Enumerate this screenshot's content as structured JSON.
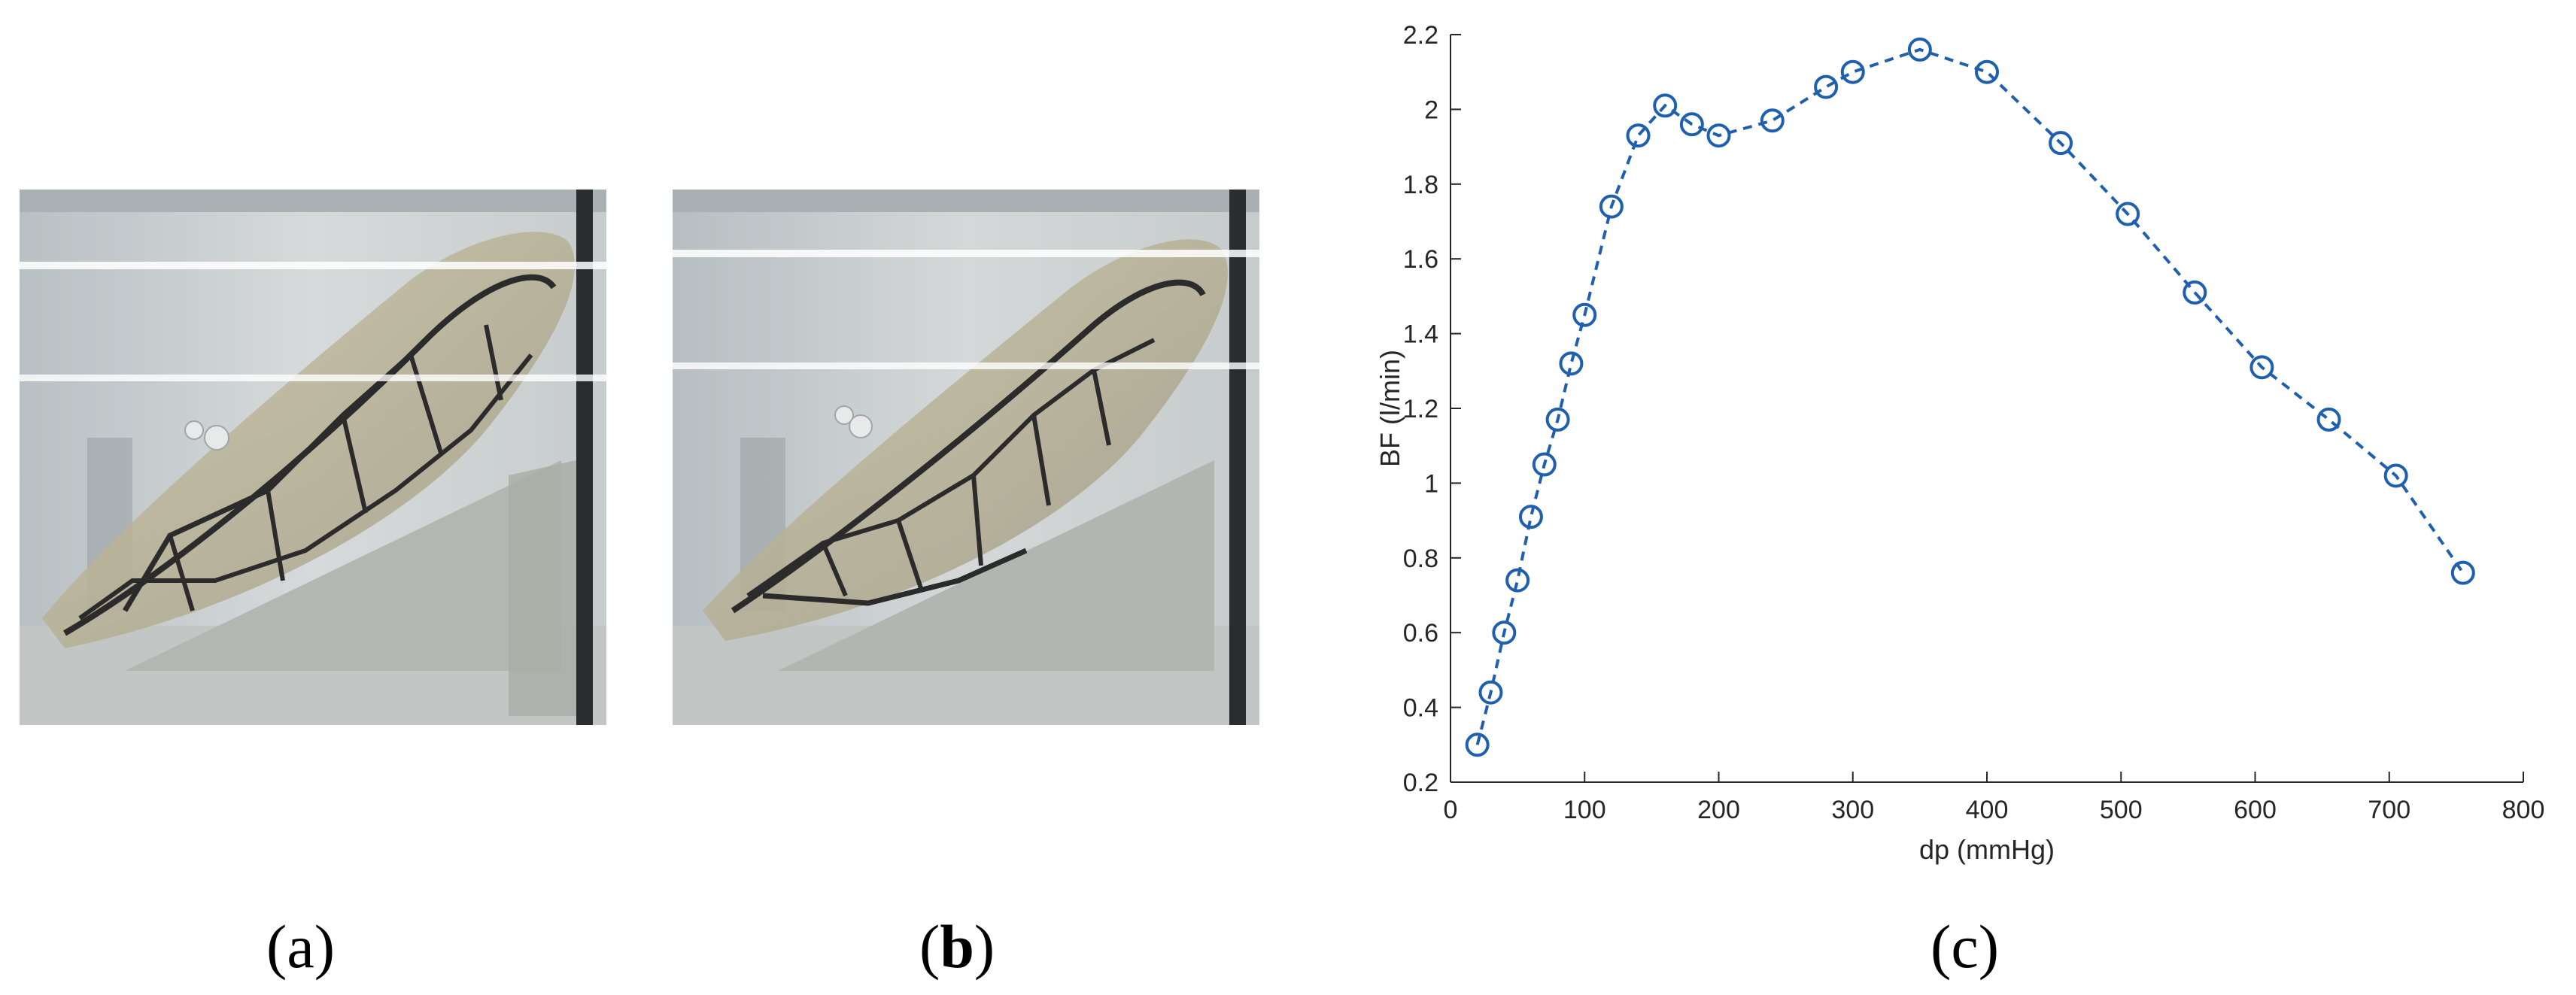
{
  "panels": [
    {
      "label_open": "(",
      "label_letter": "a",
      "label_close": ")"
    },
    {
      "label_open": "(",
      "label_letter": "b",
      "label_close": ")"
    },
    {
      "label_open": "(",
      "label_letter": "c",
      "label_close": ")"
    }
  ],
  "chart_data": {
    "type": "line",
    "xlabel": "dp (mmHg)",
    "ylabel": "BF (l/min)",
    "xlim": [
      0,
      800
    ],
    "ylim": [
      0.2,
      2.2
    ],
    "xticks": [
      0,
      100,
      200,
      300,
      400,
      500,
      600,
      700,
      800
    ],
    "yticks": [
      0.2,
      0.4,
      0.6,
      0.8,
      1,
      1.2,
      1.4,
      1.6,
      1.8,
      2,
      2.2
    ],
    "grid": false,
    "line_style": "dashed",
    "marker": "circle",
    "color": "#1f5fb0",
    "x": [
      20,
      30,
      40,
      50,
      60,
      70,
      80,
      90,
      100,
      120,
      140,
      160,
      180,
      200,
      240,
      280,
      300,
      350,
      400,
      455,
      505,
      555,
      605,
      655,
      705,
      755
    ],
    "y": [
      0.3,
      0.44,
      0.6,
      0.74,
      0.91,
      1.05,
      1.17,
      1.32,
      1.45,
      1.74,
      1.93,
      2.01,
      1.96,
      1.93,
      1.97,
      2.06,
      2.1,
      2.16,
      2.1,
      1.91,
      1.72,
      1.51,
      1.31,
      1.17,
      1.02,
      0.76
    ]
  }
}
